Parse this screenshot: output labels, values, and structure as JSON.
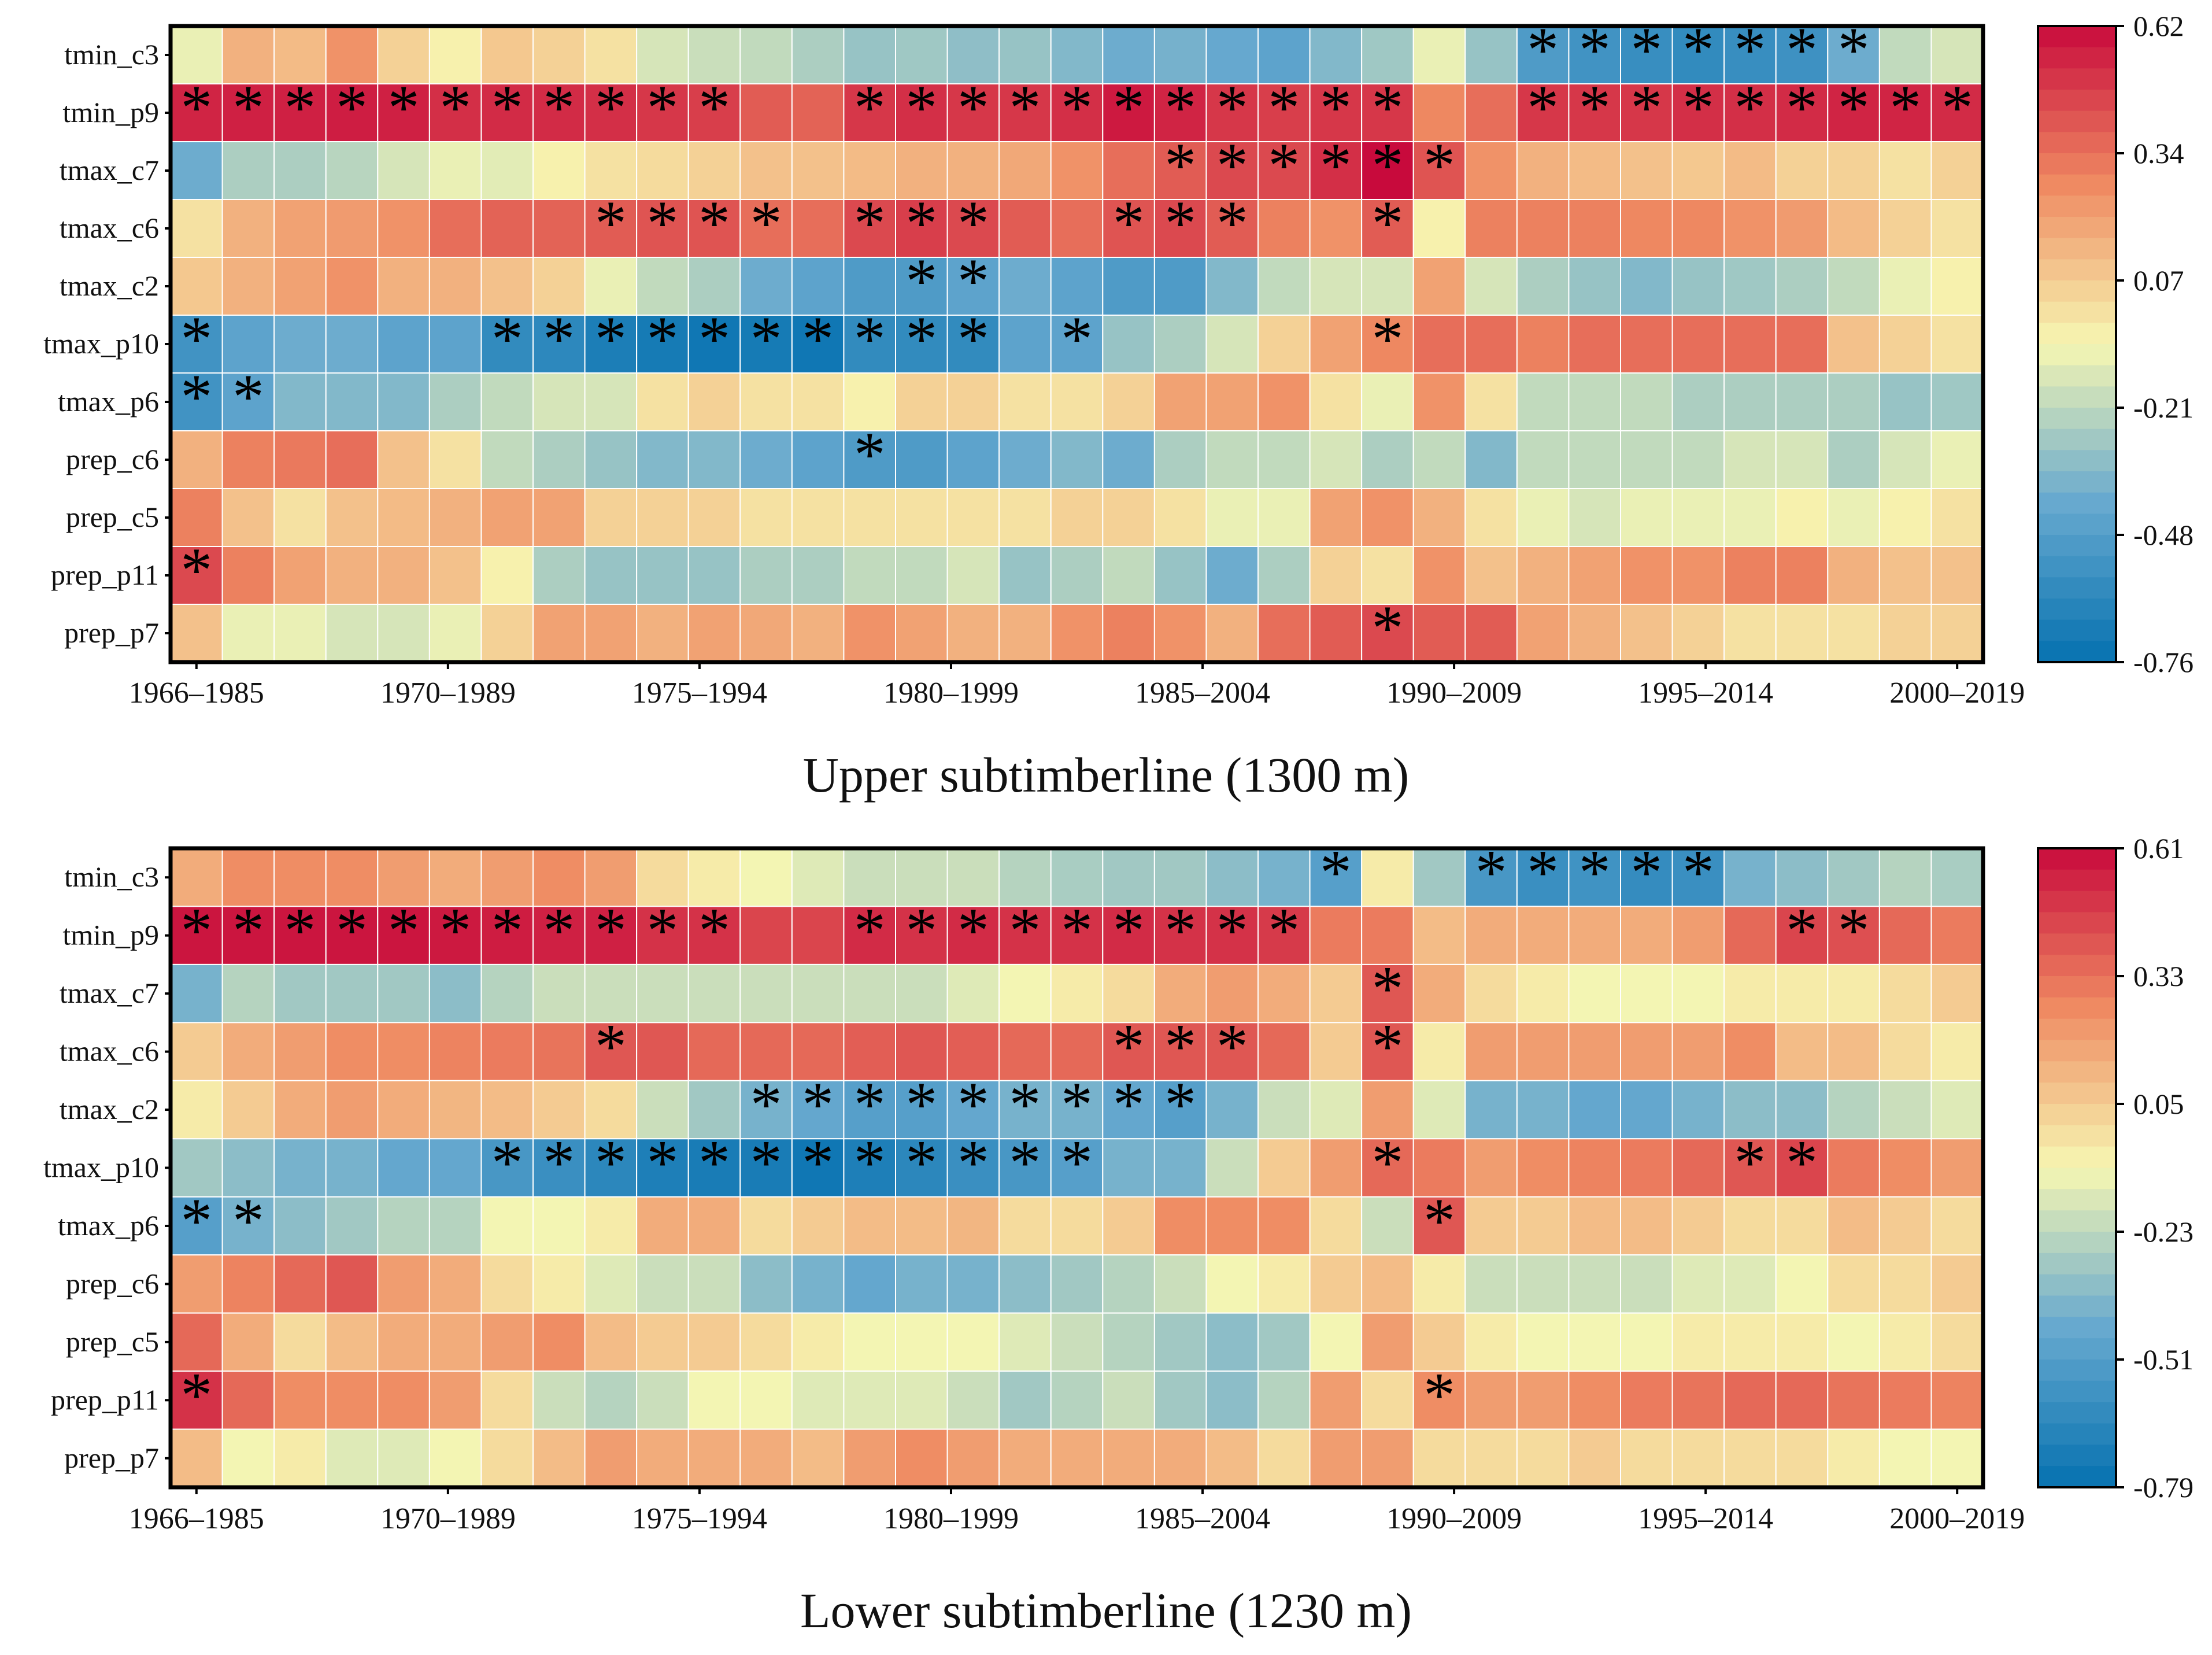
{
  "chart_data": [
    {
      "type": "heatmap",
      "title": "Upper subtimberline (1300 m)",
      "rows": [
        "tmin_c3",
        "tmin_p9",
        "tmax_c7",
        "tmax_c6",
        "tmax_c2",
        "tmax_p10",
        "tmax_p6",
        "prep_c6",
        "prep_c5",
        "prep_p11",
        "prep_p7"
      ],
      "x_tick_labels": [
        "1966–1985",
        "1970–1989",
        "1975–1994",
        "1980–1999",
        "1985–2004",
        "1990–2009",
        "1995–2014",
        "2000–2019"
      ],
      "n_windows": 35,
      "colorbar": {
        "min": -0.76,
        "max": 0.62,
        "ticks": [
          "0.62",
          "0.34",
          "0.07",
          "-0.21",
          "-0.48",
          "-0.76"
        ]
      },
      "values": [
        [
          -0.1,
          0.15,
          0.12,
          0.25,
          0.05,
          -0.05,
          0.08,
          0.05,
          0.0,
          -0.15,
          -0.18,
          -0.2,
          -0.25,
          -0.3,
          -0.28,
          -0.32,
          -0.3,
          -0.35,
          -0.4,
          -0.38,
          -0.42,
          -0.45,
          -0.35,
          -0.28,
          -0.1,
          -0.3,
          -0.5,
          -0.55,
          -0.58,
          -0.6,
          -0.58,
          -0.56,
          -0.4,
          -0.2,
          -0.15
        ],
        [
          0.55,
          0.56,
          0.56,
          0.57,
          0.56,
          0.52,
          0.53,
          0.53,
          0.52,
          0.5,
          0.48,
          0.4,
          0.38,
          0.5,
          0.52,
          0.5,
          0.5,
          0.52,
          0.58,
          0.55,
          0.5,
          0.48,
          0.5,
          0.5,
          0.28,
          0.35,
          0.5,
          0.5,
          0.5,
          0.52,
          0.52,
          0.53,
          0.55,
          0.55,
          0.53
        ],
        [
          -0.4,
          -0.25,
          -0.25,
          -0.22,
          -0.15,
          -0.1,
          -0.12,
          -0.05,
          0.0,
          0.02,
          0.05,
          0.1,
          0.1,
          0.12,
          0.15,
          0.15,
          0.18,
          0.25,
          0.35,
          0.4,
          0.45,
          0.45,
          0.52,
          0.62,
          0.42,
          0.25,
          0.15,
          0.12,
          0.1,
          0.08,
          0.12,
          0.05,
          0.05,
          0.0,
          0.05
        ],
        [
          0.0,
          0.15,
          0.2,
          0.22,
          0.25,
          0.35,
          0.38,
          0.38,
          0.4,
          0.42,
          0.42,
          0.35,
          0.35,
          0.45,
          0.48,
          0.45,
          0.4,
          0.35,
          0.42,
          0.45,
          0.4,
          0.3,
          0.25,
          0.4,
          -0.05,
          0.3,
          0.3,
          0.3,
          0.28,
          0.28,
          0.25,
          0.22,
          0.12,
          0.05,
          0.0
        ],
        [
          0.08,
          0.15,
          0.2,
          0.25,
          0.15,
          0.15,
          0.1,
          0.05,
          -0.1,
          -0.2,
          -0.25,
          -0.4,
          -0.45,
          -0.5,
          -0.5,
          -0.45,
          -0.4,
          -0.45,
          -0.5,
          -0.5,
          -0.35,
          -0.2,
          -0.15,
          -0.15,
          0.2,
          -0.15,
          -0.25,
          -0.3,
          -0.35,
          -0.3,
          -0.28,
          -0.25,
          -0.2,
          -0.1,
          -0.05
        ],
        [
          -0.55,
          -0.45,
          -0.4,
          -0.4,
          -0.45,
          -0.45,
          -0.6,
          -0.62,
          -0.68,
          -0.7,
          -0.72,
          -0.7,
          -0.72,
          -0.6,
          -0.6,
          -0.6,
          -0.45,
          -0.45,
          -0.3,
          -0.25,
          -0.15,
          0.05,
          0.2,
          0.28,
          0.35,
          0.35,
          0.3,
          0.35,
          0.35,
          0.35,
          0.35,
          0.35,
          0.1,
          0.05,
          0.0
        ],
        [
          -0.55,
          -0.45,
          -0.35,
          -0.35,
          -0.35,
          -0.25,
          -0.2,
          -0.15,
          -0.15,
          0.0,
          0.05,
          0.0,
          0.0,
          -0.05,
          0.05,
          0.05,
          0.0,
          0.0,
          0.05,
          0.2,
          0.2,
          0.25,
          0.0,
          -0.1,
          0.25,
          0.0,
          -0.2,
          -0.2,
          -0.2,
          -0.25,
          -0.25,
          -0.25,
          -0.25,
          -0.3,
          -0.28
        ],
        [
          0.15,
          0.3,
          0.32,
          0.35,
          0.1,
          0.0,
          -0.2,
          -0.25,
          -0.3,
          -0.35,
          -0.35,
          -0.4,
          -0.45,
          -0.5,
          -0.5,
          -0.45,
          -0.4,
          -0.35,
          -0.4,
          -0.25,
          -0.2,
          -0.2,
          -0.15,
          -0.25,
          -0.2,
          -0.35,
          -0.2,
          -0.2,
          -0.2,
          -0.2,
          -0.15,
          -0.15,
          -0.25,
          -0.15,
          -0.1
        ],
        [
          0.3,
          0.1,
          0.0,
          0.1,
          0.12,
          0.15,
          0.2,
          0.2,
          0.05,
          0.05,
          0.05,
          0.0,
          0.0,
          0.0,
          0.0,
          0.0,
          0.0,
          0.05,
          0.05,
          0.0,
          -0.1,
          -0.1,
          0.2,
          0.25,
          0.15,
          0.0,
          -0.1,
          -0.15,
          -0.1,
          -0.1,
          -0.1,
          -0.05,
          -0.1,
          -0.05,
          0.0
        ],
        [
          0.45,
          0.3,
          0.2,
          0.15,
          0.15,
          0.1,
          -0.05,
          -0.25,
          -0.3,
          -0.3,
          -0.3,
          -0.25,
          -0.25,
          -0.2,
          -0.2,
          -0.15,
          -0.3,
          -0.25,
          -0.2,
          -0.3,
          -0.4,
          -0.25,
          0.05,
          0.0,
          0.25,
          0.1,
          0.15,
          0.2,
          0.25,
          0.25,
          0.3,
          0.3,
          0.15,
          0.1,
          0.1
        ],
        [
          0.1,
          -0.1,
          -0.1,
          -0.15,
          -0.15,
          -0.1,
          0.05,
          0.2,
          0.2,
          0.15,
          0.2,
          0.18,
          0.15,
          0.25,
          0.2,
          0.15,
          0.15,
          0.25,
          0.3,
          0.25,
          0.15,
          0.35,
          0.4,
          0.45,
          0.4,
          0.4,
          0.2,
          0.15,
          0.1,
          0.05,
          0.0,
          0.0,
          0.0,
          0.05,
          0.05
        ]
      ],
      "significance": [
        [
          26,
          27,
          28,
          29,
          30,
          31,
          32
        ],
        [
          0,
          1,
          2,
          3,
          4,
          5,
          6,
          7,
          8,
          9,
          10,
          13,
          14,
          15,
          16,
          17,
          18,
          19,
          20,
          21,
          22,
          23,
          26,
          27,
          28,
          29,
          30,
          31,
          32,
          33,
          34
        ],
        [
          19,
          20,
          21,
          22,
          23,
          24
        ],
        [
          8,
          9,
          10,
          11,
          13,
          14,
          15,
          18,
          19,
          20,
          23
        ],
        [
          14,
          15
        ],
        [
          0,
          6,
          7,
          8,
          9,
          10,
          11,
          12,
          13,
          14,
          15,
          17,
          23
        ],
        [
          0,
          1
        ],
        [
          13
        ],
        [],
        [
          0
        ],
        [
          23
        ]
      ]
    },
    {
      "type": "heatmap",
      "title": "Lower subtimberline (1230 m)",
      "rows": [
        "tmin_c3",
        "tmin_p9",
        "tmax_c7",
        "tmax_c6",
        "tmax_c2",
        "tmax_p10",
        "tmax_p6",
        "prep_c6",
        "prep_c5",
        "prep_p11",
        "prep_p7"
      ],
      "x_tick_labels": [
        "1966–1985",
        "1970–1989",
        "1975–1994",
        "1980–1999",
        "1985–2004",
        "1990–2009",
        "1995–2014",
        "2000–2019"
      ],
      "n_windows": 35,
      "colorbar": {
        "min": -0.79,
        "max": 0.61,
        "ticks": [
          "0.61",
          "0.33",
          "0.05",
          "-0.23",
          "-0.51",
          "-0.79"
        ]
      },
      "values": [
        [
          0.15,
          0.25,
          0.25,
          0.25,
          0.2,
          0.15,
          0.2,
          0.25,
          0.2,
          0.0,
          -0.05,
          -0.1,
          -0.15,
          -0.2,
          -0.2,
          -0.2,
          -0.25,
          -0.28,
          -0.3,
          -0.3,
          -0.35,
          -0.4,
          -0.5,
          -0.05,
          -0.3,
          -0.55,
          -0.6,
          -0.58,
          -0.62,
          -0.6,
          -0.4,
          -0.35,
          -0.3,
          -0.25,
          -0.28
        ],
        [
          0.58,
          0.58,
          0.58,
          0.58,
          0.58,
          0.57,
          0.56,
          0.55,
          0.55,
          0.5,
          0.5,
          0.45,
          0.45,
          0.52,
          0.5,
          0.52,
          0.5,
          0.5,
          0.52,
          0.5,
          0.5,
          0.48,
          0.3,
          0.3,
          0.1,
          0.15,
          0.15,
          0.15,
          0.15,
          0.2,
          0.35,
          0.45,
          0.42,
          0.35,
          0.3
        ],
        [
          -0.4,
          -0.25,
          -0.3,
          -0.3,
          -0.3,
          -0.35,
          -0.25,
          -0.2,
          -0.2,
          -0.2,
          -0.2,
          -0.2,
          -0.2,
          -0.2,
          -0.2,
          -0.15,
          -0.1,
          -0.05,
          0.0,
          0.15,
          0.2,
          0.15,
          0.05,
          0.4,
          0.15,
          0.0,
          -0.05,
          -0.1,
          -0.1,
          -0.1,
          -0.05,
          -0.05,
          -0.05,
          0.0,
          0.05
        ],
        [
          0.05,
          0.15,
          0.2,
          0.25,
          0.25,
          0.28,
          0.3,
          0.32,
          0.4,
          0.4,
          0.35,
          0.35,
          0.35,
          0.38,
          0.4,
          0.38,
          0.35,
          0.35,
          0.4,
          0.4,
          0.4,
          0.35,
          0.05,
          0.4,
          -0.05,
          0.2,
          0.2,
          0.2,
          0.2,
          0.2,
          0.25,
          0.1,
          0.1,
          0.0,
          -0.05
        ],
        [
          -0.05,
          0.05,
          0.15,
          0.2,
          0.15,
          0.12,
          0.1,
          0.05,
          0.0,
          -0.2,
          -0.3,
          -0.4,
          -0.45,
          -0.5,
          -0.5,
          -0.45,
          -0.4,
          -0.4,
          -0.45,
          -0.5,
          -0.4,
          -0.2,
          -0.15,
          0.2,
          -0.15,
          -0.4,
          -0.4,
          -0.45,
          -0.45,
          -0.4,
          -0.35,
          -0.35,
          -0.25,
          -0.2,
          -0.15
        ],
        [
          -0.3,
          -0.35,
          -0.4,
          -0.4,
          -0.45,
          -0.45,
          -0.55,
          -0.6,
          -0.65,
          -0.7,
          -0.72,
          -0.72,
          -0.75,
          -0.7,
          -0.65,
          -0.6,
          -0.55,
          -0.5,
          -0.4,
          -0.4,
          -0.2,
          0.05,
          0.2,
          0.35,
          0.3,
          0.2,
          0.25,
          0.28,
          0.3,
          0.35,
          0.4,
          0.45,
          0.3,
          0.25,
          0.2
        ],
        [
          -0.5,
          -0.4,
          -0.35,
          -0.3,
          -0.25,
          -0.25,
          -0.1,
          -0.1,
          -0.05,
          0.15,
          0.15,
          0.0,
          0.05,
          0.1,
          0.1,
          0.12,
          0.0,
          0.0,
          0.05,
          0.25,
          0.25,
          0.25,
          0.0,
          -0.2,
          0.4,
          0.05,
          0.05,
          0.1,
          0.1,
          0.05,
          0.0,
          0.0,
          0.1,
          0.05,
          0.0
        ],
        [
          0.2,
          0.28,
          0.35,
          0.4,
          0.2,
          0.15,
          0.0,
          -0.05,
          -0.15,
          -0.2,
          -0.2,
          -0.35,
          -0.4,
          -0.45,
          -0.4,
          -0.4,
          -0.35,
          -0.3,
          -0.25,
          -0.2,
          -0.1,
          -0.05,
          0.05,
          0.1,
          -0.05,
          -0.2,
          -0.2,
          -0.2,
          -0.2,
          -0.15,
          -0.15,
          -0.1,
          0.0,
          0.0,
          0.05
        ],
        [
          0.35,
          0.15,
          0.0,
          0.1,
          0.15,
          0.15,
          0.2,
          0.25,
          0.1,
          0.05,
          0.05,
          0.0,
          -0.05,
          -0.1,
          -0.1,
          -0.1,
          -0.15,
          -0.2,
          -0.25,
          -0.3,
          -0.35,
          -0.3,
          -0.1,
          0.2,
          0.05,
          -0.05,
          -0.1,
          -0.1,
          -0.1,
          -0.05,
          -0.05,
          -0.05,
          -0.1,
          -0.05,
          0.0
        ],
        [
          0.5,
          0.35,
          0.25,
          0.25,
          0.25,
          0.2,
          0.0,
          -0.2,
          -0.25,
          -0.2,
          -0.1,
          -0.1,
          -0.15,
          -0.15,
          -0.15,
          -0.2,
          -0.3,
          -0.25,
          -0.2,
          -0.3,
          -0.35,
          -0.25,
          0.2,
          0.0,
          0.25,
          0.2,
          0.2,
          0.25,
          0.3,
          0.32,
          0.35,
          0.35,
          0.32,
          0.3,
          0.28
        ],
        [
          0.1,
          -0.1,
          -0.05,
          -0.15,
          -0.15,
          -0.1,
          0.0,
          0.1,
          0.2,
          0.15,
          0.15,
          0.15,
          0.1,
          0.2,
          0.25,
          0.2,
          0.15,
          0.15,
          0.15,
          0.15,
          0.1,
          0.0,
          0.2,
          0.2,
          0.0,
          0.0,
          0.0,
          0.05,
          0.0,
          0.0,
          0.0,
          0.0,
          -0.05,
          -0.1,
          -0.1
        ]
      ],
      "significance": [
        [
          22,
          25,
          26,
          27,
          28,
          29
        ],
        [
          0,
          1,
          2,
          3,
          4,
          5,
          6,
          7,
          8,
          9,
          10,
          13,
          14,
          15,
          16,
          17,
          18,
          19,
          20,
          21,
          31,
          32
        ],
        [
          23
        ],
        [
          8,
          18,
          19,
          20,
          23
        ],
        [
          11,
          12,
          13,
          14,
          15,
          16,
          17,
          18,
          19
        ],
        [
          6,
          7,
          8,
          9,
          10,
          11,
          12,
          13,
          14,
          15,
          16,
          17,
          23,
          30,
          31
        ],
        [
          0,
          1,
          24
        ],
        [],
        [],
        [
          0,
          24
        ],
        []
      ]
    }
  ]
}
